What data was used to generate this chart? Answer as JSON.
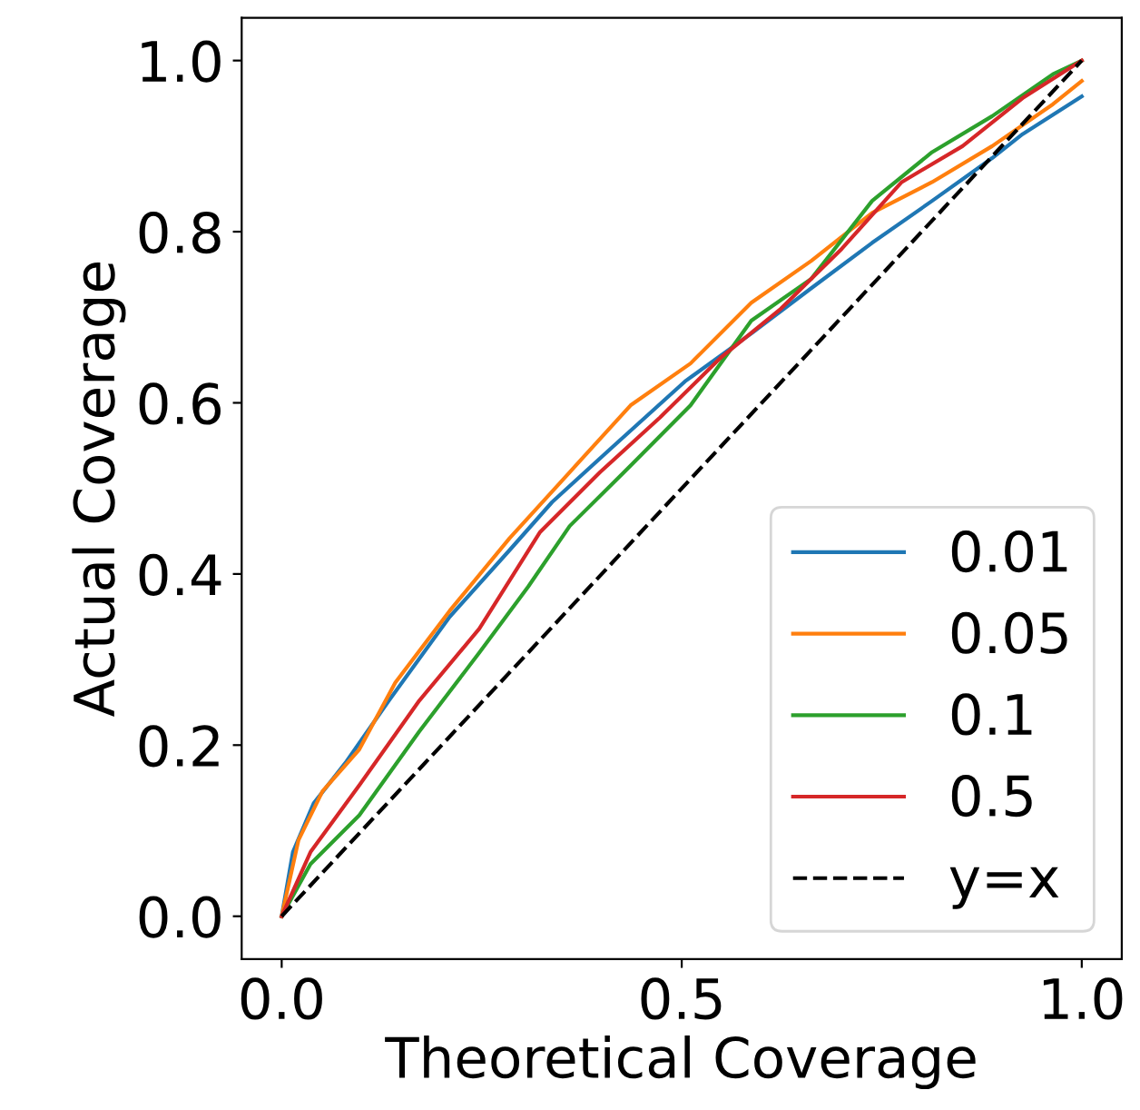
{
  "chart_data": {
    "type": "line",
    "xlabel": "Theoretical Coverage",
    "ylabel": "Actual Coverage",
    "xlim": [
      -0.05,
      1.05
    ],
    "ylim": [
      -0.05,
      1.05
    ],
    "xticks": [
      {
        "value": 0,
        "label": "0.0"
      },
      0.5,
      {
        "value": 1,
        "label": "1.0"
      }
    ],
    "yticks": [
      {
        "value": 0,
        "label": "0.0"
      },
      0.2,
      0.4,
      0.6,
      0.8,
      {
        "value": 1,
        "label": "1.0"
      }
    ],
    "legend": "bottom right",
    "grid": false,
    "line_style": "solid",
    "series": [
      {
        "name": "0.01",
        "color": "#1f77b4",
        "x": [
          0,
          0.014,
          0.04,
          0.081,
          0.134,
          0.21,
          0.285,
          0.338,
          0.413,
          0.504,
          0.587,
          0.662,
          0.738,
          0.813,
          0.888,
          0.926,
          1
        ],
        "values": [
          0,
          0.075,
          0.132,
          0.181,
          0.252,
          0.35,
          0.428,
          0.484,
          0.548,
          0.625,
          0.681,
          0.734,
          0.787,
          0.836,
          0.886,
          0.914,
          0.958
        ]
      },
      {
        "name": "0.05",
        "color": "#ff7f0e",
        "x": [
          0,
          0.021,
          0.051,
          0.097,
          0.142,
          0.21,
          0.285,
          0.36,
          0.436,
          0.511,
          0.587,
          0.662,
          0.738,
          0.813,
          0.888,
          0.964,
          1
        ],
        "values": [
          0,
          0.089,
          0.146,
          0.195,
          0.273,
          0.357,
          0.442,
          0.519,
          0.597,
          0.646,
          0.717,
          0.766,
          0.822,
          0.858,
          0.9,
          0.949,
          0.976
        ]
      },
      {
        "name": "0.1",
        "color": "#2ca02c",
        "x": [
          0,
          0.036,
          0.097,
          0.172,
          0.247,
          0.308,
          0.36,
          0.428,
          0.511,
          0.587,
          0.662,
          0.738,
          0.813,
          0.888,
          0.964,
          1
        ],
        "values": [
          0,
          0.061,
          0.118,
          0.216,
          0.308,
          0.385,
          0.456,
          0.519,
          0.597,
          0.696,
          0.745,
          0.836,
          0.893,
          0.935,
          0.984,
          1
        ]
      },
      {
        "name": "0.5",
        "color": "#d62728",
        "x": [
          0,
          0.036,
          0.097,
          0.172,
          0.247,
          0.323,
          0.398,
          0.473,
          0.549,
          0.624,
          0.7,
          0.775,
          0.851,
          0.926,
          1
        ],
        "values": [
          0,
          0.075,
          0.153,
          0.252,
          0.336,
          0.449,
          0.519,
          0.583,
          0.653,
          0.71,
          0.78,
          0.858,
          0.9,
          0.956,
          1
        ]
      },
      {
        "name": "y=x",
        "color": "#000000",
        "line_style": "dashed",
        "x": [
          0,
          1
        ],
        "values": [
          0,
          1
        ]
      }
    ]
  }
}
